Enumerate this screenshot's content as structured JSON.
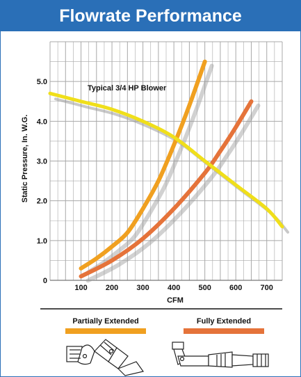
{
  "chart_data": {
    "type": "line",
    "title": "Flowrate Performance",
    "xlabel": "CFM",
    "ylabel": "Static Pressure, In. W.G.",
    "xlim": [
      0,
      750
    ],
    "ylim": [
      0,
      6
    ],
    "x_ticks": [
      "100",
      "200",
      "300",
      "400",
      "500",
      "600",
      "700"
    ],
    "y_ticks": [
      "0",
      "1.0",
      "2.0",
      "3.0",
      "4.0",
      "5.0"
    ],
    "grid": true,
    "annotations": [
      "Typical 3/4 HP Blower"
    ],
    "colors": {
      "title_bg": "#2a6fb7",
      "blower": "#f0df1a",
      "partially_extended": "#f0a020",
      "fully_extended": "#e5733a",
      "shadow": "#9a9a9a",
      "grid": "#a8a8a8"
    },
    "series": [
      {
        "name": "Typical 3/4 HP Blower",
        "x": [
          0,
          100,
          200,
          300,
          400,
          500,
          600,
          700,
          750
        ],
        "y": [
          4.7,
          4.5,
          4.3,
          4.0,
          3.6,
          3.0,
          2.4,
          1.8,
          1.35
        ]
      },
      {
        "name": "Partially Extended",
        "x": [
          100,
          150,
          200,
          250,
          300,
          350,
          400,
          450,
          500
        ],
        "y": [
          0.3,
          0.55,
          0.85,
          1.2,
          1.8,
          2.5,
          3.4,
          4.4,
          5.5
        ]
      },
      {
        "name": "Fully Extended",
        "x": [
          100,
          200,
          300,
          400,
          500,
          550,
          600,
          650
        ],
        "y": [
          0.1,
          0.5,
          1.05,
          1.8,
          2.7,
          3.25,
          3.85,
          4.5
        ]
      }
    ],
    "legend": [
      {
        "label": "Partially Extended",
        "color": "#f0a020"
      },
      {
        "label": "Fully Extended",
        "color": "#e5733a"
      }
    ]
  }
}
